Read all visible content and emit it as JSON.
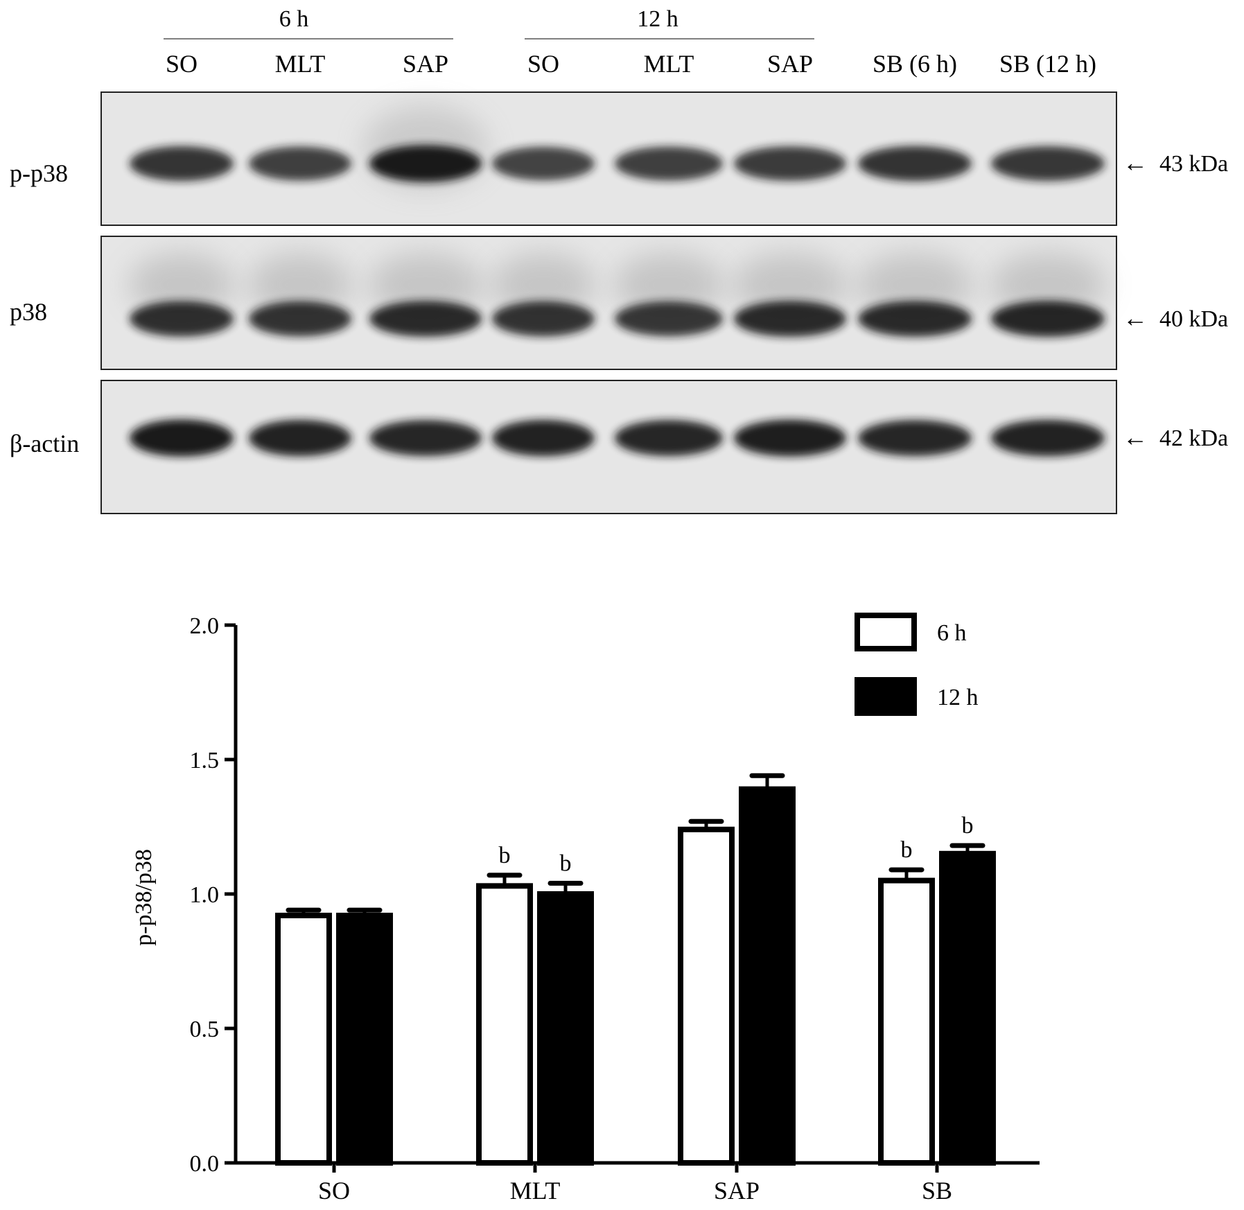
{
  "blot": {
    "group_headers": [
      {
        "label": "6 h"
      },
      {
        "label": "12 h"
      }
    ],
    "lane_labels": [
      "SO",
      "MLT",
      "SAP",
      "SO",
      "MLT",
      "SAP",
      "SB (6 h)",
      "SB (12 h)"
    ],
    "panels": [
      {
        "label": "p-p38",
        "size_label": "43 kDa",
        "band_intensity": [
          0.85,
          0.8,
          0.98,
          0.78,
          0.8,
          0.82,
          0.86,
          0.84
        ]
      },
      {
        "label": "p38",
        "size_label": "40 kDa",
        "band_intensity": [
          0.88,
          0.86,
          0.9,
          0.86,
          0.84,
          0.9,
          0.9,
          0.92
        ]
      },
      {
        "label": "β-actin",
        "size_label": "42 kDa",
        "band_intensity": [
          0.98,
          0.94,
          0.92,
          0.94,
          0.92,
          0.96,
          0.92,
          0.94
        ]
      }
    ],
    "arrow_glyph": "←",
    "band_color": "#141414",
    "membrane_color": "#e6e6e6"
  },
  "chart_data": {
    "type": "bar",
    "categories": [
      "SO",
      "MLT",
      "SAP",
      "SB"
    ],
    "ylabel": "p-p38/p38",
    "ylim": [
      0,
      2.0
    ],
    "yticks": [
      "0.0",
      "0.5",
      "1.0",
      "1.5",
      "2.0"
    ],
    "legend_position": "top-right",
    "series": [
      {
        "name": "6 h",
        "fill": "#ffffff",
        "values": [
          0.92,
          1.03,
          1.24,
          1.05
        ],
        "errors": [
          0.02,
          0.04,
          0.03,
          0.04
        ],
        "annotations": [
          "",
          "b",
          "",
          "b"
        ]
      },
      {
        "name": "12 h",
        "fill": "#000000",
        "values": [
          0.92,
          1.0,
          1.39,
          1.15
        ],
        "errors": [
          0.02,
          0.04,
          0.05,
          0.03
        ],
        "annotations": [
          "",
          "b",
          "",
          "b"
        ]
      }
    ]
  }
}
